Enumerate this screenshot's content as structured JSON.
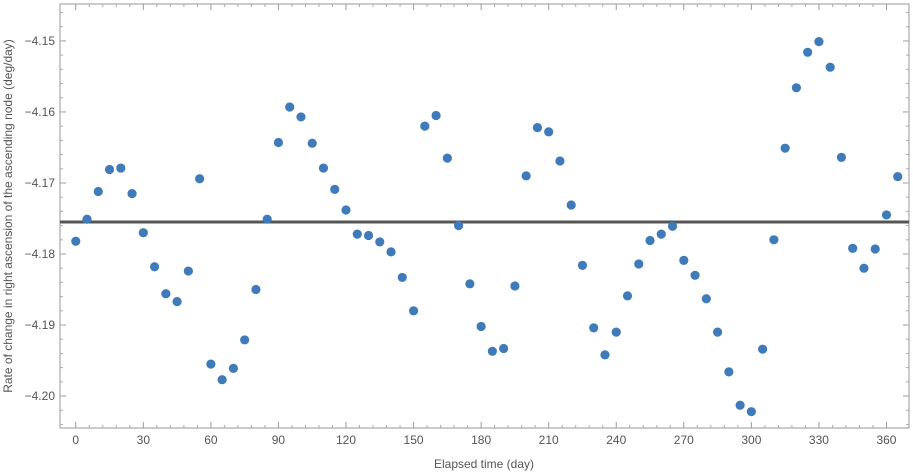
{
  "chart_data": {
    "type": "scatter",
    "title": "",
    "xlabel": "Elapsed time (day)",
    "ylabel": "Rate of change in right ascension of the ascending node (deg/day)",
    "xlim": [
      -7,
      370
    ],
    "ylim": [
      -4.2045,
      -4.1448
    ],
    "xticks": [
      0,
      30,
      60,
      90,
      120,
      150,
      180,
      210,
      240,
      270,
      300,
      330,
      360
    ],
    "xtick_labels": [
      "0",
      "30",
      "60",
      "90",
      "120",
      "150",
      "180",
      "210",
      "240",
      "270",
      "300",
      "330",
      "360"
    ],
    "yticks": [
      -4.2,
      -4.19,
      -4.18,
      -4.17,
      -4.16,
      -4.15
    ],
    "ytick_labels": [
      "−4.20",
      "−4.19",
      "−4.18",
      "−4.17",
      "−4.16",
      "−4.15"
    ],
    "grid": false,
    "reference_line": {
      "y": -4.1755,
      "color": "#555555"
    },
    "marker_color": "#3e7bb8",
    "series": [
      {
        "x": [
          0,
          5,
          10,
          15,
          20,
          25,
          30,
          35,
          40,
          45,
          50,
          55,
          60,
          65,
          70,
          75,
          80,
          85,
          90,
          95,
          100,
          105,
          110,
          115,
          120,
          125,
          130,
          135,
          140,
          145,
          150,
          155,
          160,
          165,
          170,
          175,
          180,
          185,
          190,
          195,
          200,
          205,
          210,
          215,
          220,
          225,
          230,
          235,
          240,
          245,
          250,
          255,
          260,
          265,
          270,
          275,
          280,
          285,
          290,
          295,
          300,
          305,
          310,
          315,
          320,
          325,
          330,
          335,
          340,
          345,
          350,
          355,
          360,
          365
        ],
        "y": [
          -4.1782,
          -4.1751,
          -4.1712,
          -4.1681,
          -4.1679,
          -4.1715,
          -4.177,
          -4.1818,
          -4.1856,
          -4.1867,
          -4.1824,
          -4.1694,
          -4.1955,
          -4.1977,
          -4.1961,
          -4.1921,
          -4.185,
          -4.1751,
          -4.1643,
          -4.1593,
          -4.1607,
          -4.1644,
          -4.1679,
          -4.1709,
          -4.1738,
          -4.1772,
          -4.1774,
          -4.1783,
          -4.1797,
          -4.1833,
          -4.188,
          -4.162,
          -4.1605,
          -4.1665,
          -4.176,
          -4.1842,
          -4.1902,
          -4.1937,
          -4.1933,
          -4.1845,
          -4.169,
          -4.1622,
          -4.1628,
          -4.1669,
          -4.1731,
          -4.1816,
          -4.1904,
          -4.1942,
          -4.191,
          -4.1859,
          -4.1814,
          -4.1781,
          -4.1772,
          -4.1761,
          -4.1809,
          -4.183,
          -4.1863,
          -4.191,
          -4.1966,
          -4.2013,
          -4.2022,
          -4.1934,
          -4.178,
          -4.1651,
          -4.1566,
          -4.1516,
          -4.1501,
          -4.1537,
          -4.1664,
          -4.1792,
          -4.182,
          -4.1793,
          -4.1745,
          -4.1691
        ]
      }
    ]
  }
}
